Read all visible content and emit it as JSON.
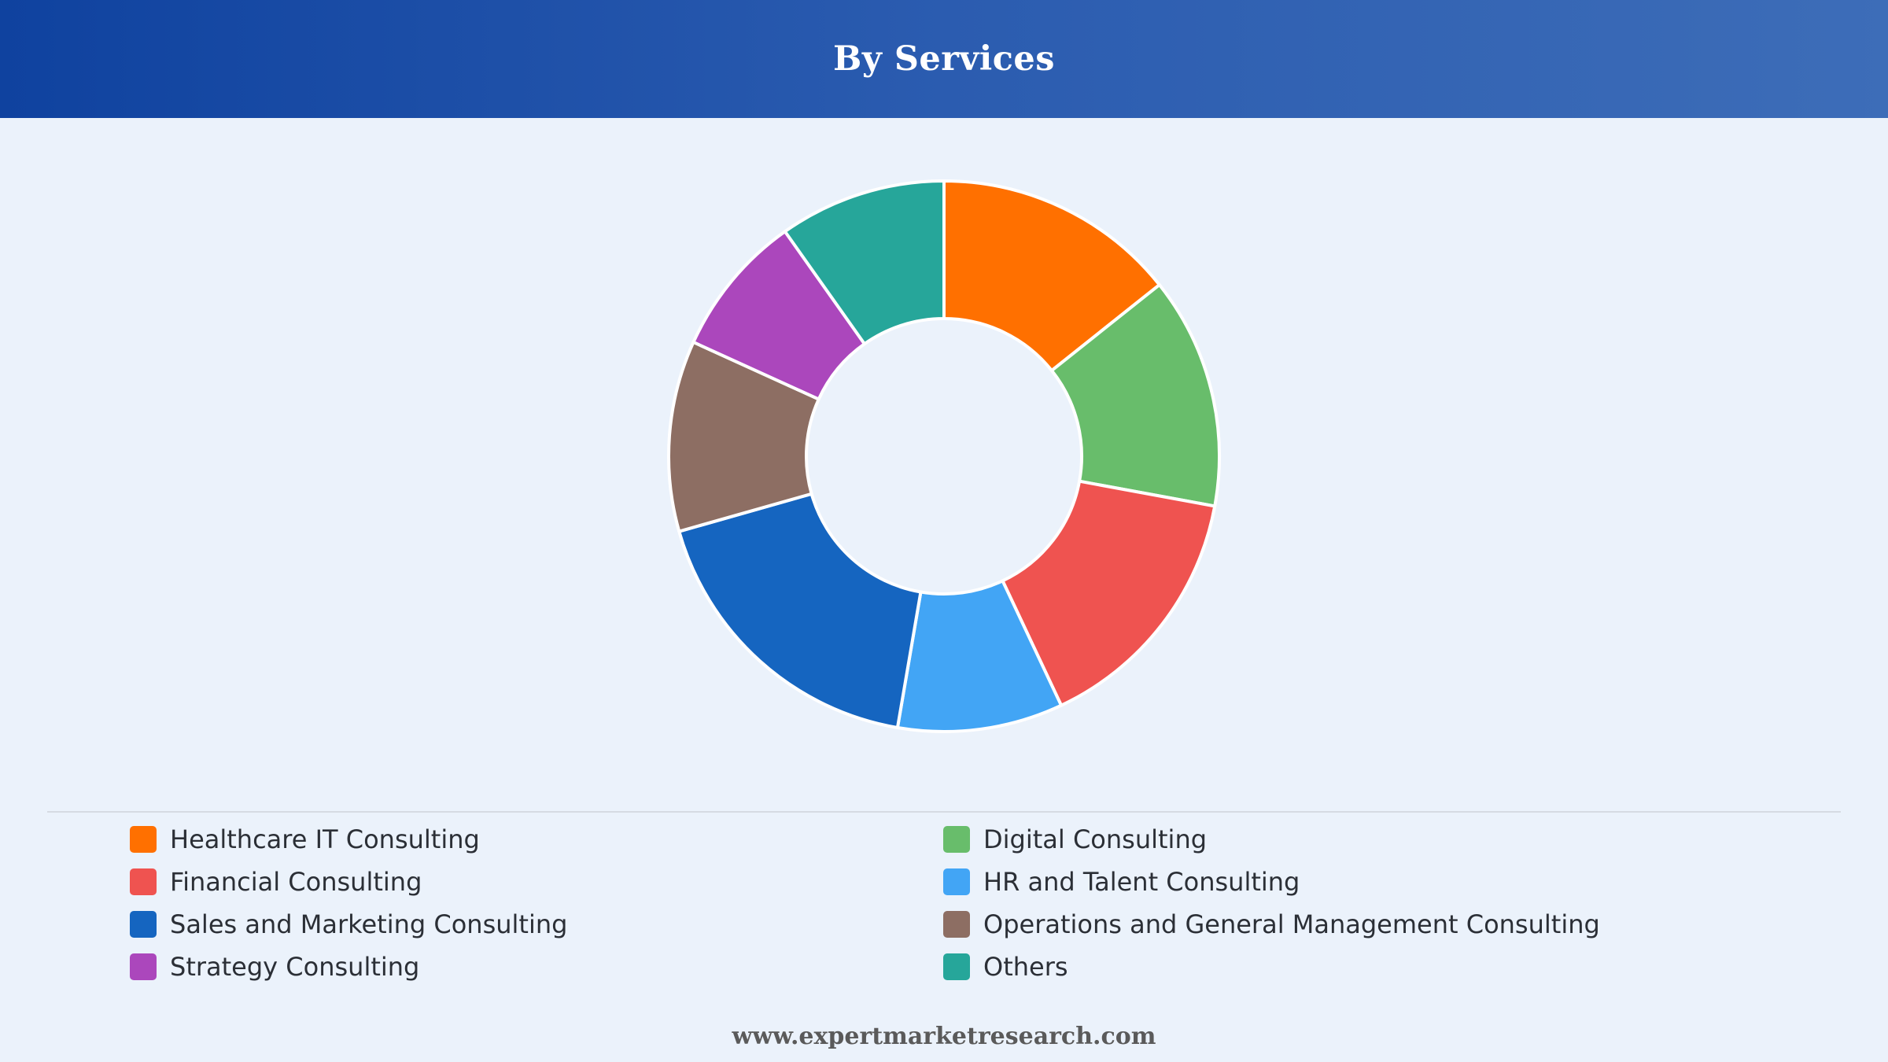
{
  "header": {
    "title": "By Services"
  },
  "footer": {
    "url": "www.expertmarketresearch.com"
  },
  "chart_data": {
    "type": "pie",
    "donut": true,
    "title": "By Services",
    "legend_position": "bottom",
    "categories": [
      "Healthcare IT Consulting",
      "Digital Consulting",
      "Financial Consulting",
      "HR and Talent Consulting",
      "Sales and Marketing Consulting",
      "Operations and General Management Consulting",
      "Strategy Consulting",
      "Others"
    ],
    "values": [
      14.3,
      13.6,
      15.1,
      9.7,
      17.9,
      11.2,
      8.4,
      9.8
    ],
    "colors": [
      "#ff7000",
      "#68bd6b",
      "#ef5350",
      "#42a5f5",
      "#1565c0",
      "#8d6e63",
      "#ab47bc",
      "#26a69a"
    ],
    "slice_order": [
      0,
      1,
      2,
      3,
      4,
      5,
      6,
      7
    ]
  },
  "legend": {
    "items": [
      {
        "label": "Healthcare IT Consulting",
        "color": "#ff7000"
      },
      {
        "label": "Digital Consulting",
        "color": "#68bd6b"
      },
      {
        "label": "Financial Consulting",
        "color": "#ef5350"
      },
      {
        "label": "HR and Talent Consulting",
        "color": "#42a5f5"
      },
      {
        "label": "Sales and Marketing Consulting",
        "color": "#1565c0"
      },
      {
        "label": "Operations and General Management Consulting",
        "color": "#8d6e63"
      },
      {
        "label": "Strategy Consulting",
        "color": "#ab47bc"
      },
      {
        "label": "Others",
        "color": "#26a69a"
      }
    ]
  }
}
